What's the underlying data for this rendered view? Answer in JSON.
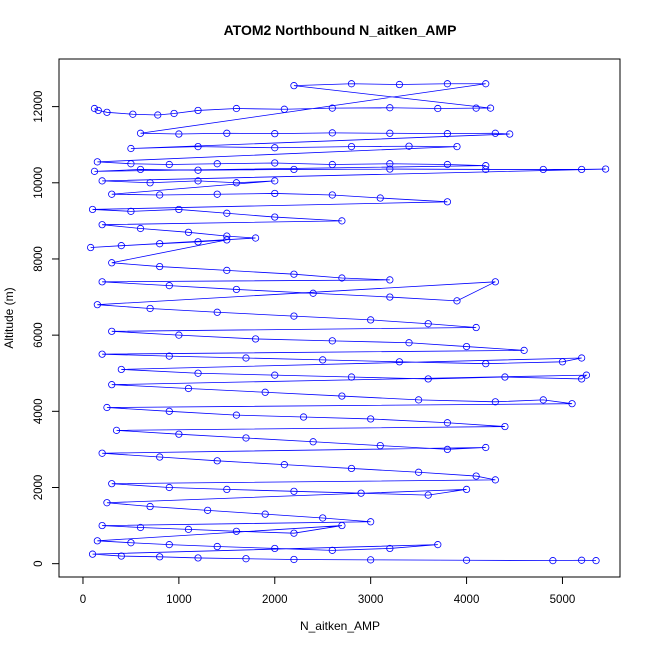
{
  "chart_data": {
    "type": "scatter",
    "title": "ATOM2 Northbound N_aitken_AMP",
    "xlabel": "N_aitken_AMP",
    "ylabel": "Altitude (m)",
    "xlim": [
      -250,
      5600
    ],
    "ylim": [
      -350,
      13250
    ],
    "xticks": [
      0,
      1000,
      2000,
      3000,
      4000,
      5000
    ],
    "yticks": [
      0,
      2000,
      4000,
      6000,
      8000,
      10000,
      12000
    ],
    "grid": false,
    "legend": "none",
    "marker": "open-circle",
    "connected_by_lines": true,
    "series": [
      {
        "color": "#0000ff",
        "points": [
          [
            120,
            11950
          ],
          [
            160,
            11900
          ],
          [
            250,
            11850
          ],
          [
            520,
            11800
          ],
          [
            780,
            11780
          ],
          [
            950,
            11820
          ],
          [
            1200,
            11900
          ],
          [
            1600,
            11950
          ],
          [
            2100,
            11930
          ],
          [
            2600,
            11960
          ],
          [
            3200,
            11970
          ],
          [
            3700,
            11950
          ],
          [
            4100,
            11960
          ],
          [
            4250,
            11960
          ],
          [
            2200,
            12550
          ],
          [
            2800,
            12600
          ],
          [
            3300,
            12580
          ],
          [
            3800,
            12600
          ],
          [
            4200,
            12600
          ],
          [
            600,
            11300
          ],
          [
            1000,
            11280
          ],
          [
            1500,
            11300
          ],
          [
            2000,
            11290
          ],
          [
            2600,
            11310
          ],
          [
            3200,
            11300
          ],
          [
            3800,
            11290
          ],
          [
            4300,
            11300
          ],
          [
            4450,
            11280
          ],
          [
            500,
            10900
          ],
          [
            1200,
            10950
          ],
          [
            2000,
            10920
          ],
          [
            2800,
            10950
          ],
          [
            3400,
            10960
          ],
          [
            3900,
            10950
          ],
          [
            150,
            10550
          ],
          [
            500,
            10500
          ],
          [
            900,
            10480
          ],
          [
            1400,
            10500
          ],
          [
            2000,
            10520
          ],
          [
            2600,
            10480
          ],
          [
            3200,
            10500
          ],
          [
            3800,
            10480
          ],
          [
            4200,
            10450
          ],
          [
            120,
            10300
          ],
          [
            600,
            10350
          ],
          [
            1200,
            10330
          ],
          [
            2200,
            10350
          ],
          [
            3200,
            10360
          ],
          [
            4200,
            10350
          ],
          [
            4800,
            10350
          ],
          [
            5200,
            10350
          ],
          [
            5450,
            10360
          ],
          [
            200,
            10050
          ],
          [
            700,
            10000
          ],
          [
            1200,
            10050
          ],
          [
            1600,
            10000
          ],
          [
            2000,
            10050
          ],
          [
            300,
            9700
          ],
          [
            800,
            9680
          ],
          [
            1400,
            9700
          ],
          [
            2000,
            9720
          ],
          [
            2600,
            9680
          ],
          [
            3100,
            9600
          ],
          [
            3800,
            9500
          ],
          [
            100,
            9300
          ],
          [
            500,
            9250
          ],
          [
            1000,
            9300
          ],
          [
            1500,
            9200
          ],
          [
            2000,
            9100
          ],
          [
            2700,
            9000
          ],
          [
            200,
            8900
          ],
          [
            600,
            8800
          ],
          [
            1100,
            8700
          ],
          [
            1500,
            8600
          ],
          [
            1800,
            8550
          ],
          [
            80,
            8300
          ],
          [
            400,
            8350
          ],
          [
            800,
            8400
          ],
          [
            1200,
            8450
          ],
          [
            1500,
            8500
          ],
          [
            300,
            7900
          ],
          [
            800,
            7800
          ],
          [
            1500,
            7700
          ],
          [
            2200,
            7600
          ],
          [
            2700,
            7500
          ],
          [
            3200,
            7450
          ],
          [
            200,
            7400
          ],
          [
            900,
            7300
          ],
          [
            1600,
            7200
          ],
          [
            2400,
            7100
          ],
          [
            3200,
            7000
          ],
          [
            3900,
            6900
          ],
          [
            4300,
            7400
          ],
          [
            150,
            6800
          ],
          [
            700,
            6700
          ],
          [
            1400,
            6600
          ],
          [
            2200,
            6500
          ],
          [
            3000,
            6400
          ],
          [
            3600,
            6300
          ],
          [
            4100,
            6200
          ],
          [
            300,
            6100
          ],
          [
            1000,
            6000
          ],
          [
            1800,
            5900
          ],
          [
            2600,
            5850
          ],
          [
            3400,
            5800
          ],
          [
            4000,
            5700
          ],
          [
            4600,
            5600
          ],
          [
            200,
            5500
          ],
          [
            900,
            5450
          ],
          [
            1700,
            5400
          ],
          [
            2500,
            5350
          ],
          [
            3300,
            5300
          ],
          [
            4200,
            5250
          ],
          [
            5000,
            5300
          ],
          [
            5200,
            5400
          ],
          [
            400,
            5100
          ],
          [
            1200,
            5000
          ],
          [
            2000,
            4950
          ],
          [
            2800,
            4900
          ],
          [
            3600,
            4850
          ],
          [
            4400,
            4900
          ],
          [
            5200,
            4850
          ],
          [
            5250,
            4950
          ],
          [
            300,
            4700
          ],
          [
            1100,
            4600
          ],
          [
            1900,
            4500
          ],
          [
            2700,
            4400
          ],
          [
            3500,
            4300
          ],
          [
            4300,
            4250
          ],
          [
            4800,
            4300
          ],
          [
            5100,
            4200
          ],
          [
            250,
            4100
          ],
          [
            900,
            4000
          ],
          [
            1600,
            3900
          ],
          [
            2300,
            3850
          ],
          [
            3000,
            3800
          ],
          [
            3800,
            3700
          ],
          [
            4400,
            3600
          ],
          [
            350,
            3500
          ],
          [
            1000,
            3400
          ],
          [
            1700,
            3300
          ],
          [
            2400,
            3200
          ],
          [
            3100,
            3100
          ],
          [
            3800,
            3000
          ],
          [
            4200,
            3050
          ],
          [
            200,
            2900
          ],
          [
            800,
            2800
          ],
          [
            1400,
            2700
          ],
          [
            2100,
            2600
          ],
          [
            2800,
            2500
          ],
          [
            3500,
            2400
          ],
          [
            4100,
            2300
          ],
          [
            4300,
            2200
          ],
          [
            300,
            2100
          ],
          [
            900,
            2000
          ],
          [
            1500,
            1950
          ],
          [
            2200,
            1900
          ],
          [
            2900,
            1850
          ],
          [
            3600,
            1800
          ],
          [
            4000,
            1950
          ],
          [
            250,
            1600
          ],
          [
            700,
            1500
          ],
          [
            1300,
            1400
          ],
          [
            1900,
            1300
          ],
          [
            2500,
            1200
          ],
          [
            3000,
            1100
          ],
          [
            200,
            1000
          ],
          [
            600,
            950
          ],
          [
            1100,
            900
          ],
          [
            1600,
            850
          ],
          [
            2200,
            800
          ],
          [
            2700,
            1000
          ],
          [
            150,
            600
          ],
          [
            500,
            550
          ],
          [
            900,
            500
          ],
          [
            1400,
            450
          ],
          [
            2000,
            400
          ],
          [
            2600,
            350
          ],
          [
            3200,
            400
          ],
          [
            3700,
            500
          ],
          [
            100,
            250
          ],
          [
            400,
            200
          ],
          [
            800,
            180
          ],
          [
            1200,
            150
          ],
          [
            1700,
            130
          ],
          [
            2200,
            110
          ],
          [
            3000,
            100
          ],
          [
            4000,
            90
          ],
          [
            4900,
            80
          ],
          [
            5200,
            90
          ],
          [
            5350,
            80
          ]
        ]
      }
    ]
  }
}
